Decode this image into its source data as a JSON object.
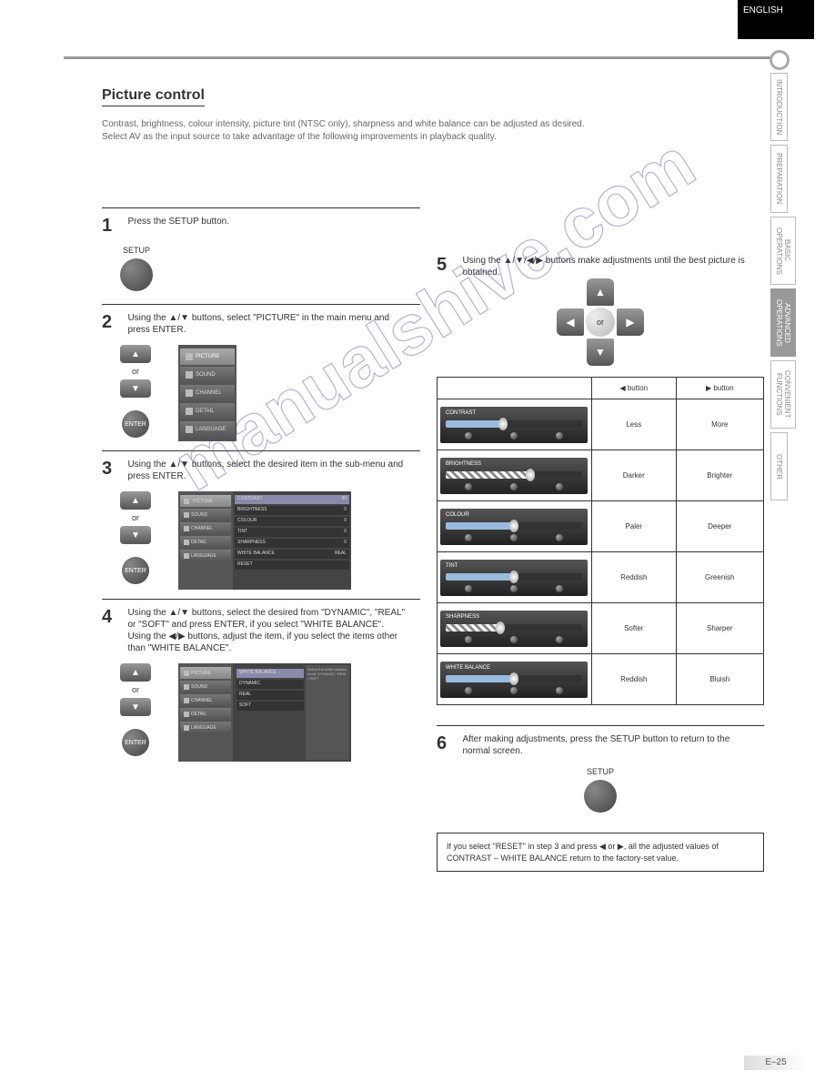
{
  "page": {
    "tab_label": "ENGLISH",
    "page_number": "E–25",
    "title": "Picture control",
    "intro_line1": "Contrast, brightness, colour intensity, picture tint (NTSC only), sharpness and white balance can be adjusted as desired.",
    "intro_line2": "Select AV as the input source to take advantage of the following improvements in playback quality."
  },
  "side_tabs": [
    "INTRODUCTION",
    "PREPARATION",
    "BASIC OPERATIONS",
    "ADVANCED OPERATIONS",
    "CONVENIENT FUNCTIONS",
    "OTHER"
  ],
  "active_side_tab_index": 3,
  "steps": {
    "s1": {
      "num": "1",
      "text": "Press the SETUP button.",
      "setup_label": "SETUP"
    },
    "s2": {
      "num": "2",
      "text": "Using the ▲/▼ buttons, select \"PICTURE\" in the main menu and press ENTER."
    },
    "s3": {
      "num": "3",
      "text": "Using the ▲/▼ buttons, select the desired item in the sub-menu and press ENTER."
    },
    "s4": {
      "num": "4",
      "text_a": "Using the ▲/▼ buttons, select the desired from \"DYNAMIC\", \"REAL\" or \"SOFT\" and press ENTER, if you select \"WHITE BALANCE\".",
      "text_b": "Using the ◀/▶ buttons, adjust the item, if you select the items other than \"WHITE BALANCE\"."
    },
    "s5": {
      "num": "5",
      "text": "Using the ▲/▼/◀/▶ buttons make adjustments until the best picture is obtained.",
      "or": "or"
    },
    "s6": {
      "num": "6",
      "text": "After making adjustments, press the SETUP button to return to the normal screen.",
      "setup_label": "SETUP"
    }
  },
  "controls": {
    "or": "or",
    "enter": "ENTER"
  },
  "menu": {
    "items": [
      "PICTURE",
      "SOUND",
      "CHANNEL",
      "DETAIL",
      "LANGUAGE"
    ],
    "sub_items": [
      {
        "name": "CONTRAST",
        "val": "30"
      },
      {
        "name": "BRIGHTNESS",
        "val": "0"
      },
      {
        "name": "COLOUR",
        "val": "0"
      },
      {
        "name": "TINT",
        "val": "0"
      },
      {
        "name": "SHARPNESS",
        "val": "0"
      },
      {
        "name": "WHITE BALANCE",
        "val": "REAL"
      },
      {
        "name": "RESET",
        "val": ""
      }
    ],
    "wb_help": "Select the white balance mode DYNAMIC / REAL / SOFT",
    "wb_options": [
      "DYNAMIC",
      "REAL",
      "SOFT"
    ]
  },
  "table": {
    "headers": [
      "",
      "◀ button",
      "▶ button"
    ],
    "rows": [
      {
        "label": "CONTRAST",
        "slider_label": "CONTRAST",
        "fill_pct": 42,
        "fill_class": "",
        "left": "Less",
        "right": "More"
      },
      {
        "label": "BRIGHTNESS",
        "slider_label": "BRIGHTNESS",
        "fill_pct": 62,
        "fill_class": "check",
        "left": "Darker",
        "right": "Brighter"
      },
      {
        "label": "COLOUR",
        "slider_label": "COLOUR",
        "fill_pct": 50,
        "fill_class": "",
        "left": "Paler",
        "right": "Deeper"
      },
      {
        "label": "TINT",
        "slider_label": "TINT",
        "fill_pct": 50,
        "fill_class": "",
        "left": "Reddish",
        "right": "Greenish"
      },
      {
        "label": "SHARPNESS",
        "slider_label": "SHARPNESS",
        "fill_pct": 40,
        "fill_class": "check",
        "left": "Softer",
        "right": "Sharper"
      },
      {
        "label": "WHITE BALANCE",
        "slider_label": "WHITE BALANCE",
        "fill_pct": 50,
        "fill_class": "",
        "left": "Reddish",
        "right": "Bluish"
      }
    ]
  },
  "note": "If you select \"RESET\" in step 3 and press ◀ or ▶, all the adjusted values of CONTRAST – WHITE BALANCE return to the factory-set value.",
  "watermark": "manualshive.com"
}
